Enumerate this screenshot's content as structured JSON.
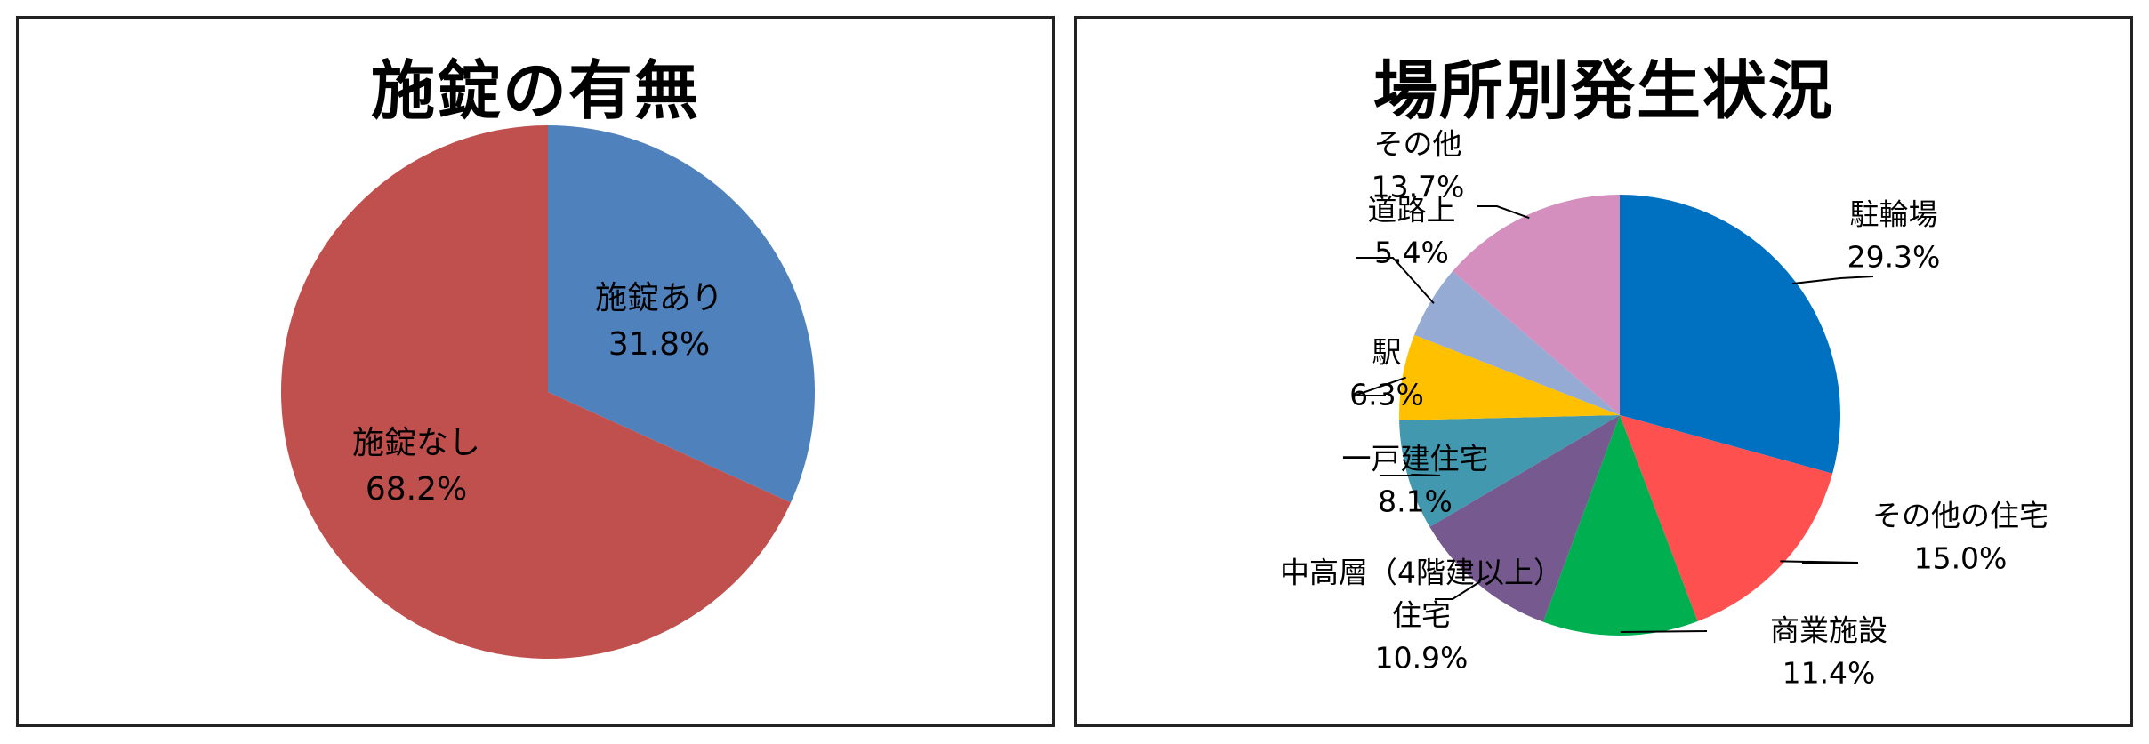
{
  "chart_data": [
    {
      "type": "pie",
      "title": "施錠の有無",
      "slices": [
        {
          "label": "施錠あり",
          "value": 31.8,
          "display": "31.8%",
          "color": "#4F81BD"
        },
        {
          "label": "施錠なし",
          "value": 68.2,
          "display": "68.2%",
          "color": "#C0504D"
        }
      ]
    },
    {
      "type": "pie",
      "title": "場所別発生状況",
      "slices": [
        {
          "label": "駐輪場",
          "value": 29.3,
          "display": "29.3%",
          "color": "#0070C0"
        },
        {
          "label": "その他の住宅",
          "value": 15.0,
          "display": "15.0%",
          "color": "#FF5050"
        },
        {
          "label": "商業施設",
          "value": 11.4,
          "display": "11.4%",
          "color": "#00B050"
        },
        {
          "label": "中高層（4階建以上）\n住宅",
          "value": 10.9,
          "display": "10.9%",
          "color": "#765A8F"
        },
        {
          "label": "一戸建住宅",
          "value": 8.1,
          "display": "8.1%",
          "color": "#4298AE"
        },
        {
          "label": "駅",
          "value": 6.3,
          "display": "6.3%",
          "color": "#FFC000"
        },
        {
          "label": "道路上",
          "value": 5.4,
          "display": "5.4%",
          "color": "#95ABD4"
        },
        {
          "label": "その他",
          "value": 13.7,
          "display": "13.7%",
          "color": "#D48FBE"
        }
      ]
    }
  ]
}
